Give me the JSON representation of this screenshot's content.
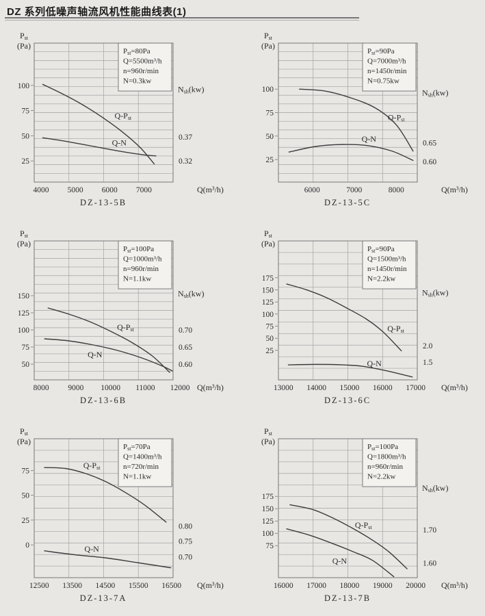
{
  "page": {
    "title": "DZ 系列低噪声轴流风机性能曲线表(1)",
    "colors": {
      "background": "#e8e7e4",
      "text": "#2a2a2a",
      "grid": "#a2a2a2",
      "plot_border": "#777777",
      "curve": "#3c3c3c",
      "info_box_bg": "#f3f2ef",
      "info_box_border": "#6e6e6e"
    }
  },
  "chart_data": [
    {
      "type": "line",
      "name": "DZ-13-5B",
      "y_axis_title_lines": [
        "Pst",
        "(Pa)"
      ],
      "x_axis_title": "Q(m³/h)",
      "right_axis_title": "Nsh(kw)",
      "right_axis_title_y": 96,
      "info_box": [
        "Pst=80Pa",
        "Q=5500m³/h",
        "n=960r/min",
        "N=0.3kw"
      ],
      "xlim": [
        3800,
        7850
      ],
      "ylim": [
        4,
        142
      ],
      "x_ticks": [
        4000,
        5000,
        6000,
        7000
      ],
      "y_ticks": [
        25,
        50,
        75,
        100
      ],
      "grid_rows": 16,
      "grid_cols": 4,
      "right_labels": [
        {
          "text": "0.37",
          "y": 49
        },
        {
          "text": "0.32",
          "y": 25
        }
      ],
      "series": [
        {
          "name": "Q-Pst",
          "label_pos": [
            6390,
            70
          ],
          "points": [
            [
              4050,
              101
            ],
            [
              4600,
              92
            ],
            [
              5200,
              81
            ],
            [
              5800,
              68
            ],
            [
              6400,
              53
            ],
            [
              6900,
              38
            ],
            [
              7300,
              22
            ]
          ]
        },
        {
          "name": "Q-N",
          "label_pos": [
            6280,
            43
          ],
          "points": [
            [
              4050,
              48
            ],
            [
              4800,
              44
            ],
            [
              5600,
              39
            ],
            [
              6400,
              34
            ],
            [
              7000,
              31
            ],
            [
              7350,
              30
            ]
          ]
        }
      ]
    },
    {
      "type": "line",
      "name": "DZ-13-5C",
      "y_axis_title_lines": [
        "Pst",
        "(Pa)"
      ],
      "x_axis_title": "Q(m³/h)",
      "right_axis_title": "Nsh(kw)",
      "right_axis_title_y": 96,
      "info_box": [
        "Pst=90Pa",
        "Q=7000m³/h",
        "n=1450r/min",
        "N=0.75kw"
      ],
      "xlim": [
        5200,
        8500
      ],
      "ylim": [
        1,
        149
      ],
      "x_ticks": [
        6000,
        7000,
        8000
      ],
      "y_ticks": [
        25,
        50,
        75,
        100
      ],
      "grid_rows": 16,
      "grid_cols": 4,
      "right_labels": [
        {
          "text": "0.65",
          "y": 43
        },
        {
          "text": "0.60",
          "y": 23
        }
      ],
      "series": [
        {
          "name": "Q-Pst",
          "label_pos": [
            8000,
            70
          ],
          "points": [
            [
              5700,
              100
            ],
            [
              6300,
              98
            ],
            [
              6900,
              91
            ],
            [
              7500,
              80
            ],
            [
              8000,
              62
            ],
            [
              8400,
              34
            ]
          ]
        },
        {
          "name": "Q-N",
          "label_pos": [
            7350,
            47
          ],
          "points": [
            [
              5450,
              33
            ],
            [
              6100,
              39
            ],
            [
              6700,
              41
            ],
            [
              7300,
              40
            ],
            [
              7900,
              34
            ],
            [
              8400,
              24
            ]
          ]
        }
      ]
    },
    {
      "type": "line",
      "name": "DZ-13-6B",
      "y_axis_title_lines": [
        "Pst",
        "(Pa)"
      ],
      "x_axis_title": "Q(m³/h)",
      "right_axis_title": "Nsh(kw)",
      "right_axis_title_y": 153,
      "info_box": [
        "Pst=100Pa",
        "Q=1000m³/h",
        "n=960r/min",
        "N=1.1kw"
      ],
      "xlim": [
        7800,
        11800
      ],
      "ylim": [
        27,
        230
      ],
      "x_ticks": [
        8000,
        9000,
        10000,
        11000,
        12000
      ],
      "y_ticks": [
        50,
        75,
        100,
        125,
        150
      ],
      "grid_rows": 16,
      "grid_cols": 4,
      "right_labels": [
        {
          "text": "0.70",
          "y": 100
        },
        {
          "text": "0.65",
          "y": 75
        },
        {
          "text": "0.60",
          "y": 50
        }
      ],
      "series": [
        {
          "name": "Q-Pst",
          "label_pos": [
            10430,
            104
          ],
          "points": [
            [
              8200,
              132
            ],
            [
              8800,
              123
            ],
            [
              9400,
              112
            ],
            [
              10000,
              98
            ],
            [
              10600,
              82
            ],
            [
              11200,
              62
            ],
            [
              11700,
              38
            ]
          ]
        },
        {
          "name": "Q-N",
          "label_pos": [
            9550,
            64
          ],
          "points": [
            [
              8100,
              87
            ],
            [
              8800,
              84
            ],
            [
              9500,
              78
            ],
            [
              10200,
              70
            ],
            [
              10900,
              59
            ],
            [
              11500,
              47
            ],
            [
              11780,
              40
            ]
          ]
        }
      ]
    },
    {
      "type": "line",
      "name": "DZ-13-6C",
      "y_axis_title_lines": [
        "Pst",
        "(Pa)"
      ],
      "x_axis_title": "Q(m³/h)",
      "right_axis_title": "Nsh(kw)",
      "right_axis_title_y": 144,
      "info_box": [
        "Pst=90Pa",
        "Q=1500m³/h",
        "n=1450r/min",
        "N=2.2kw"
      ],
      "xlim": [
        12850,
        17050
      ],
      "ylim": [
        -36,
        251
      ],
      "x_ticks": [
        13000,
        14000,
        15000,
        16000,
        17000
      ],
      "y_ticks": [
        25,
        50,
        75,
        100,
        125,
        150,
        175
      ],
      "grid_rows": 12,
      "grid_cols": 4,
      "right_labels": [
        {
          "text": "2.0",
          "y": 35
        },
        {
          "text": "1.5",
          "y": 1
        }
      ],
      "series": [
        {
          "name": "Q-Pst",
          "label_pos": [
            16400,
            70
          ],
          "points": [
            [
              13100,
              162
            ],
            [
              13700,
              150
            ],
            [
              14300,
              134
            ],
            [
              14900,
              113
            ],
            [
              15500,
              90
            ],
            [
              16000,
              64
            ],
            [
              16570,
              24
            ]
          ]
        },
        {
          "name": "Q-N",
          "label_pos": [
            15750,
            -2
          ],
          "points": [
            [
              13150,
              -5
            ],
            [
              14000,
              -4
            ],
            [
              14800,
              -5
            ],
            [
              15400,
              -8
            ],
            [
              16100,
              -17
            ],
            [
              16900,
              -30
            ]
          ]
        }
      ]
    },
    {
      "type": "line",
      "name": "DZ-13-7A",
      "y_axis_title_lines": [
        "Pst",
        "(Pa)"
      ],
      "x_axis_title": "Q(m³/h)",
      "right_axis_title": null,
      "right_axis_title_y": null,
      "info_box": [
        "Pst=70Pa",
        "Q=1400m³/h",
        "n=720r/min",
        "N=1.1kw"
      ],
      "xlim": [
        12350,
        16550
      ],
      "ylim": [
        -33,
        107
      ],
      "x_ticks": [
        12500,
        13500,
        14500,
        15500,
        16500
      ],
      "y_ticks": [
        0,
        25,
        50,
        75
      ],
      "grid_rows": 12,
      "grid_cols": 4,
      "right_labels": [
        {
          "text": "0.80",
          "y": 19
        },
        {
          "text": "0.75",
          "y": 4
        },
        {
          "text": "0.70",
          "y": -12
        }
      ],
      "series": [
        {
          "name": "Q-Pst",
          "label_pos": [
            14090,
            80
          ],
          "points": [
            [
              12660,
              78
            ],
            [
              13300,
              77
            ],
            [
              13900,
              72
            ],
            [
              14500,
              64
            ],
            [
              15100,
              53
            ],
            [
              15700,
              40
            ],
            [
              16340,
              23
            ]
          ]
        },
        {
          "name": "Q-N",
          "label_pos": [
            14090,
            -4
          ],
          "points": [
            [
              12660,
              -6
            ],
            [
              13600,
              -10
            ],
            [
              14500,
              -13
            ],
            [
              15500,
              -18
            ],
            [
              16480,
              -23
            ]
          ]
        }
      ]
    },
    {
      "type": "line",
      "name": "DZ-13-7B",
      "y_axis_title_lines": [
        "Pst",
        "(Pa)"
      ],
      "x_axis_title": "Q(m³/h)",
      "right_axis_title": "Nsh(kw)",
      "right_axis_title_y": 192,
      "info_box": [
        "Pst=100Pa",
        "Q=1800m³/h",
        "n=960r/min",
        "N=2.2kw"
      ],
      "xlim": [
        15850,
        20050
      ],
      "ylim": [
        10,
        292
      ],
      "x_ticks": [
        16000,
        17000,
        18000,
        19000,
        20000
      ],
      "y_ticks": [
        75,
        100,
        125,
        150,
        175
      ],
      "grid_rows": 12,
      "grid_cols": 4,
      "right_labels": [
        {
          "text": "1.70",
          "y": 107
        },
        {
          "text": "1.60",
          "y": 40
        }
      ],
      "series": [
        {
          "name": "Q-Pst",
          "label_pos": [
            18420,
            117
          ],
          "points": [
            [
              16200,
              158
            ],
            [
              16900,
              148
            ],
            [
              17500,
              131
            ],
            [
              18100,
              110
            ],
            [
              18700,
              86
            ],
            [
              19200,
              62
            ],
            [
              19740,
              28
            ]
          ]
        },
        {
          "name": "Q-N",
          "label_pos": [
            17700,
            44
          ],
          "points": [
            [
              16100,
              109
            ],
            [
              16800,
              96
            ],
            [
              17500,
              79
            ],
            [
              18100,
              63
            ],
            [
              18700,
              45
            ],
            [
              19340,
              12
            ]
          ]
        }
      ]
    }
  ]
}
